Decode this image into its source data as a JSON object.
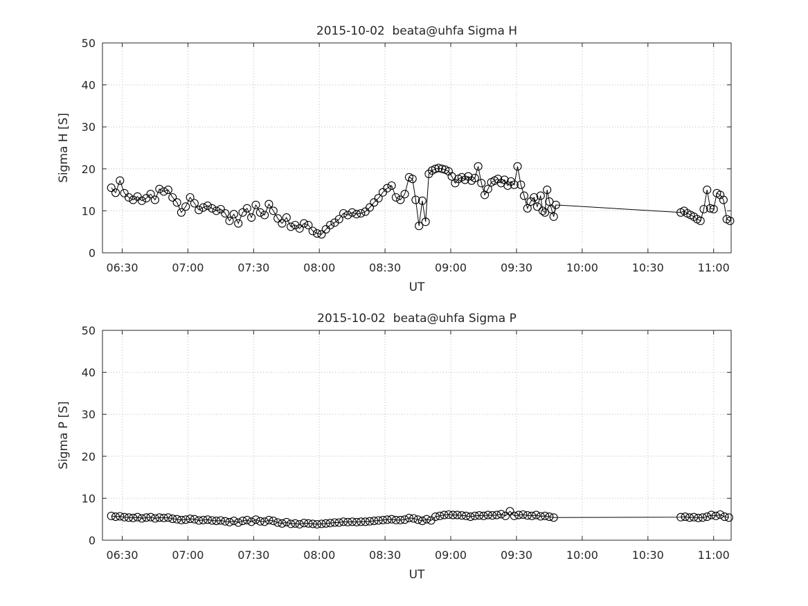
{
  "figure": {
    "background": "#ffffff"
  },
  "colors": {
    "line": "#000000",
    "axis": "#262626",
    "grid": "#b9b9b9"
  },
  "chart_data": [
    {
      "type": "line",
      "name": "sigma-h-chart",
      "title": "2015-10-02  beata@uhfa Sigma H",
      "xlabel": "UT",
      "ylabel": "Sigma H [S]",
      "ylim": [
        0,
        50
      ],
      "xlim_minutes": [
        381,
        668
      ],
      "grid": true,
      "marker": "circle",
      "yticks": [
        0,
        10,
        20,
        30,
        40,
        50
      ],
      "xticks": [
        {
          "minutes": 390,
          "label": "06:30"
        },
        {
          "minutes": 420,
          "label": "07:00"
        },
        {
          "minutes": 450,
          "label": "07:30"
        },
        {
          "minutes": 480,
          "label": "08:00"
        },
        {
          "minutes": 510,
          "label": "08:30"
        },
        {
          "minutes": 540,
          "label": "09:00"
        },
        {
          "minutes": 570,
          "label": "09:30"
        },
        {
          "minutes": 600,
          "label": "10:00"
        },
        {
          "minutes": 630,
          "label": "10:30"
        },
        {
          "minutes": 660,
          "label": "11:00"
        }
      ],
      "points": [
        [
          385,
          15.5
        ],
        [
          387,
          14.3
        ],
        [
          389,
          17.2
        ],
        [
          391,
          14.2
        ],
        [
          393,
          13.2
        ],
        [
          395,
          12.6
        ],
        [
          397,
          13.4
        ],
        [
          399,
          12.4
        ],
        [
          401,
          13.0
        ],
        [
          403,
          14.0
        ],
        [
          405,
          12.6
        ],
        [
          407,
          15.2
        ],
        [
          409,
          14.6
        ],
        [
          411,
          15.0
        ],
        [
          413,
          13.2
        ],
        [
          415,
          12.0
        ],
        [
          417,
          9.6
        ],
        [
          419,
          11.0
        ],
        [
          421,
          13.2
        ],
        [
          423,
          11.8
        ],
        [
          425,
          10.2
        ],
        [
          427,
          10.8
        ],
        [
          429,
          11.2
        ],
        [
          431,
          10.6
        ],
        [
          433,
          10.0
        ],
        [
          435,
          10.4
        ],
        [
          437,
          9.4
        ],
        [
          439,
          7.6
        ],
        [
          441,
          9.2
        ],
        [
          443,
          7.0
        ],
        [
          445,
          9.6
        ],
        [
          447,
          10.6
        ],
        [
          449,
          8.4
        ],
        [
          451,
          11.4
        ],
        [
          453,
          9.6
        ],
        [
          455,
          9.0
        ],
        [
          457,
          11.6
        ],
        [
          459,
          10.0
        ],
        [
          461,
          8.2
        ],
        [
          463,
          7.0
        ],
        [
          465,
          8.4
        ],
        [
          467,
          6.2
        ],
        [
          469,
          6.6
        ],
        [
          471,
          5.8
        ],
        [
          473,
          7.0
        ],
        [
          475,
          6.6
        ],
        [
          477,
          5.2
        ],
        [
          479,
          4.6
        ],
        [
          481,
          4.4
        ],
        [
          483,
          5.6
        ],
        [
          485,
          6.6
        ],
        [
          487,
          7.2
        ],
        [
          489,
          8.0
        ],
        [
          491,
          9.4
        ],
        [
          493,
          9.0
        ],
        [
          495,
          9.6
        ],
        [
          497,
          9.2
        ],
        [
          499,
          9.4
        ],
        [
          501,
          9.8
        ],
        [
          503,
          10.8
        ],
        [
          505,
          12.0
        ],
        [
          507,
          13.0
        ],
        [
          509,
          14.4
        ],
        [
          511,
          15.4
        ],
        [
          513,
          16.0
        ],
        [
          515,
          13.2
        ],
        [
          517,
          12.6
        ],
        [
          519,
          14.0
        ],
        [
          521,
          18.0
        ],
        [
          522.5,
          17.6
        ],
        [
          524,
          12.6
        ],
        [
          525.5,
          6.4
        ],
        [
          527,
          12.4
        ],
        [
          528.5,
          7.4
        ],
        [
          530,
          18.8
        ],
        [
          531.5,
          19.6
        ],
        [
          533,
          20.0
        ],
        [
          534.5,
          20.2
        ],
        [
          536,
          20.0
        ],
        [
          537.5,
          19.8
        ],
        [
          539,
          19.4
        ],
        [
          540.5,
          18.2
        ],
        [
          542,
          16.6
        ],
        [
          543.5,
          17.6
        ],
        [
          545,
          18.0
        ],
        [
          546.5,
          17.4
        ],
        [
          548,
          18.2
        ],
        [
          549.5,
          17.2
        ],
        [
          551,
          17.8
        ],
        [
          552.5,
          20.6
        ],
        [
          554,
          16.6
        ],
        [
          555.5,
          13.8
        ],
        [
          557,
          15.2
        ],
        [
          558.5,
          16.8
        ],
        [
          560,
          17.2
        ],
        [
          561.5,
          17.6
        ],
        [
          563,
          16.6
        ],
        [
          564.5,
          17.4
        ],
        [
          566,
          16.0
        ],
        [
          567.5,
          17.0
        ],
        [
          569,
          16.2
        ],
        [
          570.5,
          20.6
        ],
        [
          572,
          16.2
        ],
        [
          573.5,
          13.6
        ],
        [
          575,
          10.6
        ],
        [
          576.5,
          12.2
        ],
        [
          578,
          13.2
        ],
        [
          579.5,
          11.0
        ],
        [
          581,
          13.6
        ],
        [
          582,
          10.0
        ],
        [
          583,
          9.6
        ],
        [
          584,
          15.0
        ],
        [
          585,
          12.2
        ],
        [
          586,
          10.4
        ],
        [
          587,
          8.6
        ],
        [
          588,
          11.4
        ],
        [
          645,
          9.6
        ],
        [
          646.5,
          10.0
        ],
        [
          648,
          9.4
        ],
        [
          649.5,
          9.0
        ],
        [
          651,
          8.6
        ],
        [
          652.5,
          8.0
        ],
        [
          654,
          7.6
        ],
        [
          655.5,
          10.4
        ],
        [
          657,
          15.0
        ],
        [
          658.5,
          10.6
        ],
        [
          660,
          10.4
        ],
        [
          661.5,
          14.2
        ],
        [
          663,
          13.8
        ],
        [
          664.5,
          12.6
        ],
        [
          666,
          8.0
        ],
        [
          667.5,
          7.6
        ]
      ]
    },
    {
      "type": "line",
      "name": "sigma-p-chart",
      "title": "2015-10-02  beata@uhfa Sigma P",
      "xlabel": "UT",
      "ylabel": "Sigma P [S]",
      "ylim": [
        0,
        50
      ],
      "xlim_minutes": [
        381,
        668
      ],
      "grid": true,
      "marker": "circle",
      "yticks": [
        0,
        10,
        20,
        30,
        40,
        50
      ],
      "xticks": [
        {
          "minutes": 390,
          "label": "06:30"
        },
        {
          "minutes": 420,
          "label": "07:00"
        },
        {
          "minutes": 450,
          "label": "07:30"
        },
        {
          "minutes": 480,
          "label": "08:00"
        },
        {
          "minutes": 510,
          "label": "08:30"
        },
        {
          "minutes": 540,
          "label": "09:00"
        },
        {
          "minutes": 570,
          "label": "09:30"
        },
        {
          "minutes": 600,
          "label": "10:00"
        },
        {
          "minutes": 630,
          "label": "10:30"
        },
        {
          "minutes": 660,
          "label": "11:00"
        }
      ],
      "points": [
        [
          385,
          5.8
        ],
        [
          387,
          5.6
        ],
        [
          389,
          5.7
        ],
        [
          391,
          5.5
        ],
        [
          393,
          5.4
        ],
        [
          395,
          5.3
        ],
        [
          397,
          5.5
        ],
        [
          399,
          5.2
        ],
        [
          401,
          5.4
        ],
        [
          403,
          5.5
        ],
        [
          405,
          5.2
        ],
        [
          407,
          5.4
        ],
        [
          409,
          5.3
        ],
        [
          411,
          5.4
        ],
        [
          413,
          5.1
        ],
        [
          415,
          5.0
        ],
        [
          417,
          4.8
        ],
        [
          419,
          4.9
        ],
        [
          421,
          5.1
        ],
        [
          423,
          5.0
        ],
        [
          425,
          4.7
        ],
        [
          427,
          4.8
        ],
        [
          429,
          4.9
        ],
        [
          431,
          4.7
        ],
        [
          433,
          4.6
        ],
        [
          435,
          4.7
        ],
        [
          437,
          4.5
        ],
        [
          439,
          4.3
        ],
        [
          441,
          4.6
        ],
        [
          443,
          4.2
        ],
        [
          445,
          4.6
        ],
        [
          447,
          4.8
        ],
        [
          449,
          4.4
        ],
        [
          451,
          4.9
        ],
        [
          453,
          4.5
        ],
        [
          455,
          4.4
        ],
        [
          457,
          4.8
        ],
        [
          459,
          4.6
        ],
        [
          461,
          4.2
        ],
        [
          463,
          4.0
        ],
        [
          465,
          4.3
        ],
        [
          467,
          3.9
        ],
        [
          469,
          4.0
        ],
        [
          471,
          3.8
        ],
        [
          473,
          4.1
        ],
        [
          475,
          4.0
        ],
        [
          477,
          3.9
        ],
        [
          479,
          3.8
        ],
        [
          481,
          3.9
        ],
        [
          483,
          4.0
        ],
        [
          485,
          4.1
        ],
        [
          487,
          4.2
        ],
        [
          489,
          4.2
        ],
        [
          491,
          4.4
        ],
        [
          493,
          4.3
        ],
        [
          495,
          4.4
        ],
        [
          497,
          4.3
        ],
        [
          499,
          4.4
        ],
        [
          501,
          4.4
        ],
        [
          503,
          4.5
        ],
        [
          505,
          4.6
        ],
        [
          507,
          4.7
        ],
        [
          509,
          4.8
        ],
        [
          511,
          4.9
        ],
        [
          513,
          5.0
        ],
        [
          515,
          4.8
        ],
        [
          517,
          4.8
        ],
        [
          519,
          4.9
        ],
        [
          521,
          5.3
        ],
        [
          523,
          5.2
        ],
        [
          525,
          4.9
        ],
        [
          527,
          4.6
        ],
        [
          529,
          5.0
        ],
        [
          531,
          4.7
        ],
        [
          533,
          5.6
        ],
        [
          535,
          5.8
        ],
        [
          537,
          6.0
        ],
        [
          539,
          6.1
        ],
        [
          541,
          6.0
        ],
        [
          543,
          6.0
        ],
        [
          545,
          5.9
        ],
        [
          547,
          5.8
        ],
        [
          549,
          5.6
        ],
        [
          551,
          5.8
        ],
        [
          553,
          5.9
        ],
        [
          555,
          5.8
        ],
        [
          557,
          6.0
        ],
        [
          559,
          5.9
        ],
        [
          561,
          6.0
        ],
        [
          563,
          6.2
        ],
        [
          565,
          5.8
        ],
        [
          567,
          6.9
        ],
        [
          569,
          5.8
        ],
        [
          571,
          6.0
        ],
        [
          573,
          6.1
        ],
        [
          575,
          5.9
        ],
        [
          577,
          5.8
        ],
        [
          579,
          6.0
        ],
        [
          581,
          5.7
        ],
        [
          583,
          5.8
        ],
        [
          585,
          5.6
        ],
        [
          587,
          5.4
        ],
        [
          645,
          5.5
        ],
        [
          647,
          5.6
        ],
        [
          649,
          5.4
        ],
        [
          651,
          5.5
        ],
        [
          653,
          5.3
        ],
        [
          655,
          5.4
        ],
        [
          657,
          5.6
        ],
        [
          659,
          6.0
        ],
        [
          661,
          5.8
        ],
        [
          663,
          6.1
        ],
        [
          665,
          5.6
        ],
        [
          667,
          5.4
        ]
      ]
    }
  ]
}
